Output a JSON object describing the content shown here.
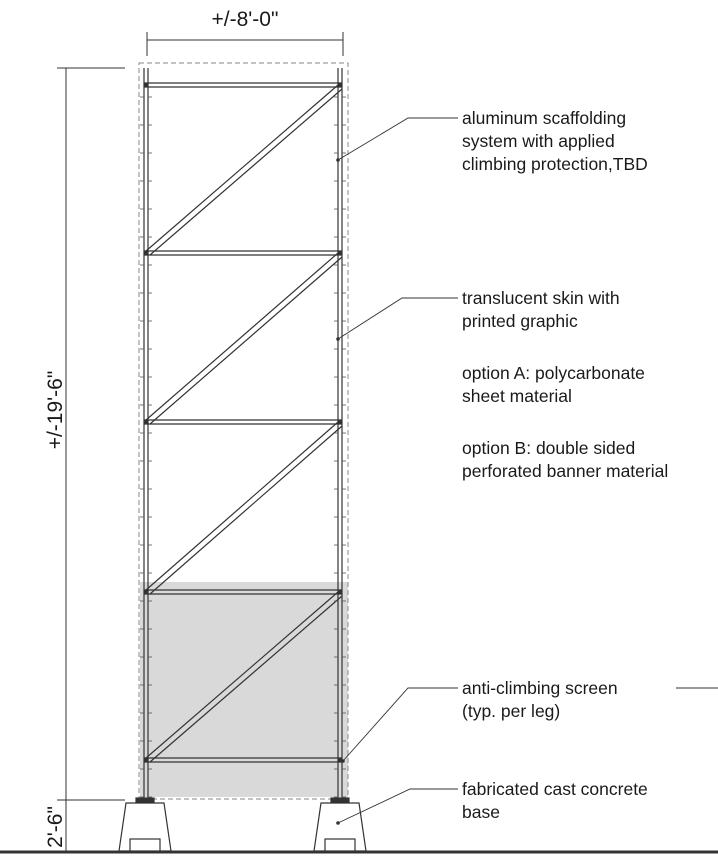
{
  "dimensions": {
    "width": "+/-8'-0\"",
    "height": "+/-19'-6\"",
    "base_height": "2'-6\""
  },
  "notes": {
    "scaffolding": {
      "line1": "aluminum scaffolding",
      "line2": "system with applied",
      "line3": "climbing protection,TBD"
    },
    "skin": {
      "line1": "translucent skin with",
      "line2": "printed graphic"
    },
    "option_a": {
      "line1": "option A: polycarbonate",
      "line2": "sheet material"
    },
    "option_b": {
      "line1": "option B: double sided",
      "line2": "perforated banner material"
    },
    "anti_climb": {
      "line1": "anti-climbing screen",
      "line2": "(typ. per leg)"
    },
    "base": {
      "line1": "fabricated cast concrete",
      "line2": "base"
    }
  },
  "colors": {
    "line": "#333333",
    "screen_fill": "#d9d9d9",
    "dashed": "#8a8a8a"
  }
}
